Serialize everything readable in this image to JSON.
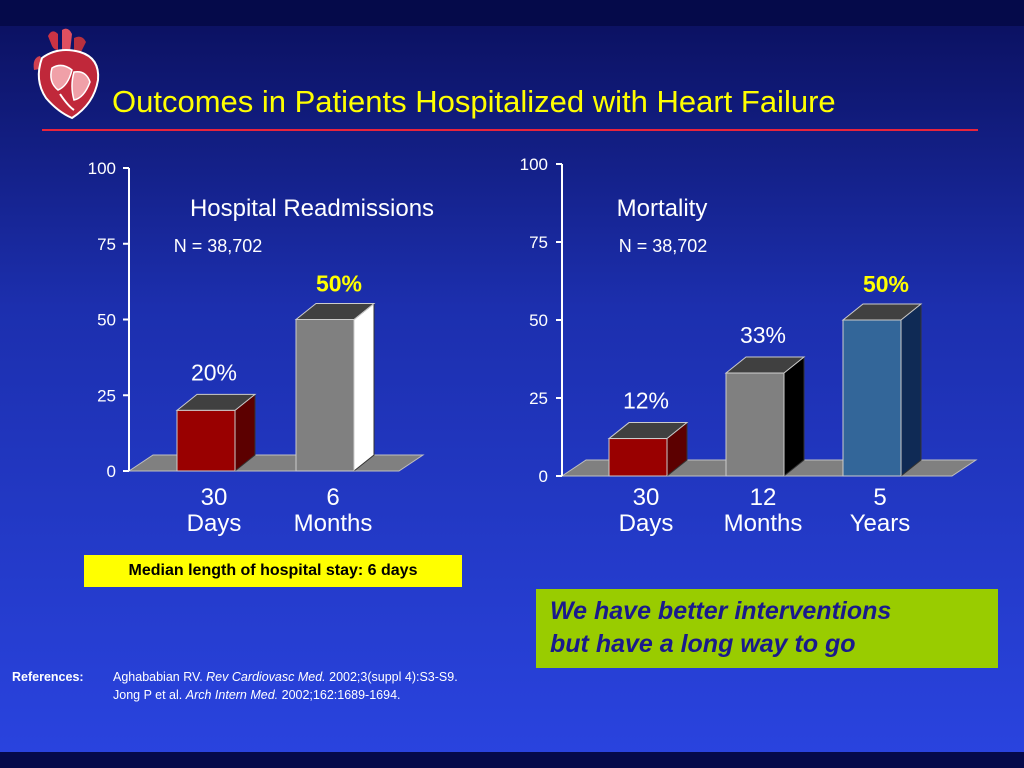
{
  "slide": {
    "title": "Outcomes in Patients Hospitalized with Heart Failure",
    "logo_icon": "heart-anatomy-icon",
    "colors": {
      "background": "#1c2fae",
      "title": "#ffff00",
      "rule": "#e8243c",
      "floor": "#808080",
      "yellow_box": "#ffff00",
      "green_box": "#99cc00"
    }
  },
  "chart_data": [
    {
      "type": "bar",
      "title": "Hospital Readmissions",
      "subtitle": "N = 38,702",
      "ylim": [
        0,
        100
      ],
      "yticks": [
        "0",
        "25",
        "50",
        "75",
        "100"
      ],
      "categories": [
        "30 Days",
        "6 Months"
      ],
      "category_lines": [
        [
          "30",
          "Days"
        ],
        [
          "6",
          "Months"
        ]
      ],
      "values": [
        20,
        50
      ],
      "data_labels": [
        "20%",
        "50%"
      ],
      "label_emphasis": [
        false,
        true
      ],
      "colors": [
        "#990000",
        "#808080"
      ],
      "side_colors": [
        "#5c0000",
        "#ffffff"
      ],
      "grid": false
    },
    {
      "type": "bar",
      "title": "Mortality",
      "subtitle": "N = 38,702",
      "ylim": [
        0,
        100
      ],
      "yticks": [
        "0",
        "25",
        "50",
        "75",
        "100"
      ],
      "categories": [
        "30 Days",
        "12 Months",
        "5 Years"
      ],
      "category_lines": [
        [
          "30",
          "Days"
        ],
        [
          "12",
          "Months"
        ],
        [
          "5",
          "Years"
        ]
      ],
      "values": [
        12,
        33,
        50
      ],
      "data_labels": [
        "12%",
        "33%",
        "50%"
      ],
      "label_emphasis": [
        false,
        false,
        true
      ],
      "colors": [
        "#990000",
        "#808080",
        "#336699"
      ],
      "side_colors": [
        "#5c0000",
        "#000000",
        "#0f2a55"
      ],
      "grid": false
    }
  ],
  "median_box": {
    "text": "Median length of hospital stay: 6 days"
  },
  "callout": {
    "line1": "We have better interventions",
    "line2": "but have a long way to go"
  },
  "references": {
    "label": "References:",
    "items": [
      {
        "authors": "Aghababian RV. ",
        "journal": "Rev Cardiovasc Med.",
        "details": " 2002;3(suppl 4):S3-S9."
      },
      {
        "authors": "Jong P et al. ",
        "journal": "Arch Intern Med.",
        "details": " 2002;162:1689-1694."
      }
    ]
  }
}
